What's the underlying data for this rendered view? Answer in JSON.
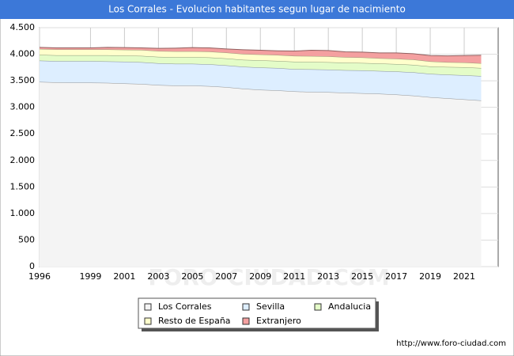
{
  "chart_data": {
    "type": "stacked_area",
    "title": "Los Corrales - Evolucion habitantes segun lugar de nacimiento",
    "x": [
      1996,
      1997,
      1998,
      1999,
      2000,
      2001,
      2002,
      2003,
      2004,
      2005,
      2006,
      2007,
      2008,
      2009,
      2010,
      2011,
      2012,
      2013,
      2014,
      2015,
      2016,
      2017,
      2018,
      2019,
      2020,
      2021,
      2022
    ],
    "xlim": [
      1996,
      2023
    ],
    "xticks": [
      1996,
      1999,
      2001,
      2003,
      2005,
      2007,
      2009,
      2011,
      2013,
      2015,
      2017,
      2019,
      2021
    ],
    "ylim": [
      0,
      4500
    ],
    "yticks": [
      0,
      500,
      {
        "value": 1000,
        "label": "1.000"
      },
      {
        "value": 1500,
        "label": "1.500"
      },
      {
        "value": 2000,
        "label": "2.000"
      },
      {
        "value": 2500,
        "label": "2.500"
      },
      {
        "value": 3000,
        "label": "3.000"
      },
      {
        "value": 3500,
        "label": "3.500"
      },
      {
        "value": 4000,
        "label": "4.000"
      },
      {
        "value": 4500,
        "label": "4.500"
      }
    ],
    "grid": true,
    "series": [
      {
        "name": "Los Corrales",
        "color": "#f4f4f4",
        "values": [
          3480,
          3470,
          3465,
          3465,
          3460,
          3450,
          3440,
          3420,
          3410,
          3410,
          3400,
          3380,
          3350,
          3330,
          3320,
          3300,
          3290,
          3285,
          3275,
          3265,
          3255,
          3240,
          3220,
          3190,
          3170,
          3150,
          3130
        ]
      },
      {
        "name": "Sevilla",
        "color": "#ddeeff",
        "values": [
          400,
          400,
          405,
          405,
          405,
          410,
          410,
          410,
          410,
          410,
          410,
          410,
          415,
          420,
          420,
          420,
          425,
          425,
          425,
          430,
          430,
          435,
          440,
          440,
          445,
          455,
          460
        ]
      },
      {
        "name": "Andalucia",
        "color": "#e4fcc8",
        "values": [
          110,
          110,
          110,
          110,
          115,
          115,
          120,
          120,
          125,
          125,
          130,
          130,
          130,
          135,
          135,
          140,
          140,
          140,
          140,
          140,
          140,
          140,
          140,
          140,
          145,
          150,
          150
        ]
      },
      {
        "name": "Resto de España",
        "color": "#ffffcc",
        "values": [
          110,
          110,
          110,
          110,
          110,
          110,
          110,
          110,
          110,
          110,
          110,
          110,
          110,
          110,
          110,
          110,
          110,
          110,
          105,
          105,
          100,
          100,
          100,
          95,
          90,
          90,
          90
        ]
      },
      {
        "name": "Extranjero",
        "color": "#f4a0a0",
        "values": [
          30,
          30,
          30,
          30,
          40,
          40,
          40,
          50,
          60,
          70,
          70,
          70,
          80,
          80,
          80,
          90,
          110,
          110,
          100,
          100,
          100,
          110,
          110,
          110,
          120,
          130,
          150
        ]
      }
    ],
    "watermark": "FORO-CIUDAD.COM",
    "source": "http://www.foro-ciudad.com"
  }
}
